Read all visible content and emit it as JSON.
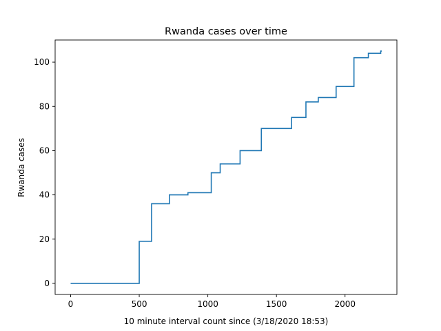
{
  "chart_data": {
    "type": "line",
    "title": "Rwanda cases over time",
    "xlabel": "10 minute interval count since (3/18/2020 18:53)",
    "ylabel": "Rwanda cases",
    "xlim": [
      -113,
      2378
    ],
    "ylim": [
      -5,
      110
    ],
    "xticks": [
      0,
      500,
      1000,
      1500,
      2000
    ],
    "yticks": [
      0,
      20,
      40,
      60,
      80,
      100
    ],
    "grid": false,
    "line_style": "step",
    "series": [
      {
        "color": "#1f77b4",
        "points": [
          [
            0,
            0
          ],
          [
            500,
            0
          ],
          [
            500,
            19
          ],
          [
            590,
            19
          ],
          [
            590,
            36
          ],
          [
            720,
            36
          ],
          [
            720,
            40
          ],
          [
            855,
            40
          ],
          [
            855,
            41
          ],
          [
            1025,
            41
          ],
          [
            1025,
            50
          ],
          [
            1090,
            50
          ],
          [
            1090,
            54
          ],
          [
            1235,
            54
          ],
          [
            1235,
            60
          ],
          [
            1390,
            60
          ],
          [
            1390,
            70
          ],
          [
            1610,
            70
          ],
          [
            1610,
            75
          ],
          [
            1715,
            75
          ],
          [
            1715,
            82
          ],
          [
            1805,
            82
          ],
          [
            1805,
            84
          ],
          [
            1935,
            84
          ],
          [
            1935,
            89
          ],
          [
            2065,
            89
          ],
          [
            2065,
            102
          ],
          [
            2170,
            102
          ],
          [
            2170,
            104
          ],
          [
            2260,
            104
          ],
          [
            2260,
            105
          ],
          [
            2268,
            105
          ]
        ]
      }
    ]
  }
}
